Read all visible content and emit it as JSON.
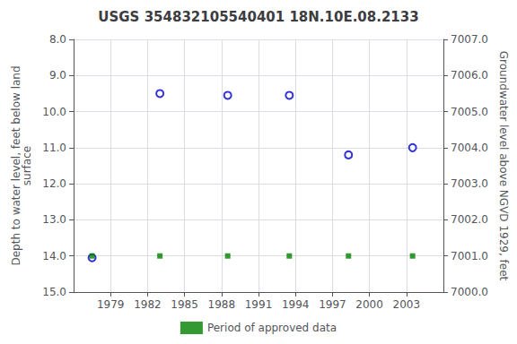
{
  "chart_data": {
    "type": "scatter",
    "title": "USGS 354832105540401 18N.10E.08.2133",
    "ylabel": "Depth to water level, feet below land\nsurface",
    "y2label": "Groundwater level above NGVD 1929, feet",
    "series": [
      {
        "x": [
          1977.5,
          1983.0,
          1988.5,
          1993.5,
          1998.3,
          2003.5
        ],
        "values": [
          14.05,
          9.5,
          9.55,
          9.55,
          11.2,
          11.0
        ],
        "color": "#0000cc",
        "marker": "open circle"
      },
      {
        "name": "Period of approved data",
        "x": [
          1977.5,
          1983.0,
          1988.5,
          1993.5,
          1998.3,
          2003.5
        ],
        "values": [
          14.0,
          14.0,
          14.0,
          14.0,
          14.0,
          14.0
        ],
        "color": "#008000",
        "marker": "square"
      }
    ],
    "xlim": [
      1976,
      2006
    ],
    "xticks": [
      1979,
      1982,
      1985,
      1988,
      1991,
      1994,
      1997,
      2000,
      2003
    ],
    "ylim": [
      15,
      8
    ],
    "yticks": [
      {
        "value": 8,
        "label": "8.0"
      },
      {
        "value": 9,
        "label": "9.0"
      },
      {
        "value": 10,
        "label": "10.0"
      },
      {
        "value": 11,
        "label": "11.0"
      },
      {
        "value": 12,
        "label": "12.0"
      },
      {
        "value": 13,
        "label": "13.0"
      },
      {
        "value": 14,
        "label": "14.0"
      },
      {
        "value": 15,
        "label": "15.0"
      }
    ],
    "y2lim": [
      7000,
      7007
    ],
    "y2ticks": [
      {
        "value": 7007,
        "label": "7007.0"
      },
      {
        "value": 7006,
        "label": "7006.0"
      },
      {
        "value": 7005,
        "label": "7005.0"
      },
      {
        "value": 7004,
        "label": "7004.0"
      },
      {
        "value": 7003,
        "label": "7003.0"
      },
      {
        "value": 7002,
        "label": "7002.0"
      },
      {
        "value": 7001,
        "label": "7001.0"
      },
      {
        "value": 7000,
        "label": "7000.0"
      }
    ],
    "grid": true,
    "legend": "bottom"
  }
}
